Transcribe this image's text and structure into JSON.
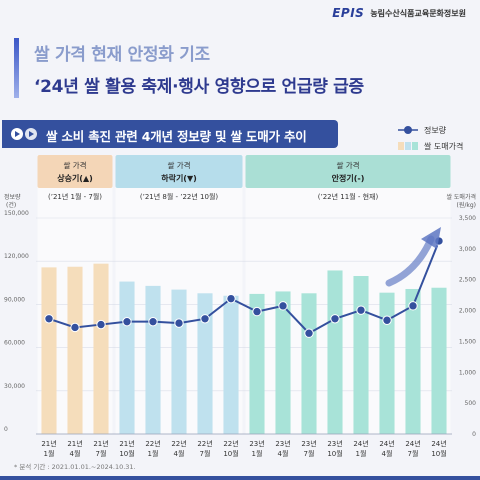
{
  "header": {
    "brand_logo": "EPIS",
    "brand_name": "농림수산식품교육문화정보원",
    "title_line1": "쌀 가격 현재 안정화 기조",
    "title_line2": "‘24년 쌀 활용 축제·행사 영향으로 언급량 급증"
  },
  "subheader": {
    "title": "쌀 소비 촉진 관련 4개년 정보량 및 쌀 도매가 추이"
  },
  "footnote": "* 분석 기간 : 2021.01.01.~2024.10.31.",
  "colors": {
    "rising": "#f5ddbb",
    "falling": "#bfe1ee",
    "stable": "#a8e3d8",
    "line": "#34509e",
    "accent": "#2e3a8f"
  },
  "chart_data": {
    "type": "bar",
    "categories": [
      "21년 1월",
      "21년 4월",
      "21년 7월",
      "21년 10월",
      "22년 1월",
      "22년 4월",
      "22년 7월",
      "22년 10월",
      "23년 1월",
      "23년 4월",
      "23년 7월",
      "23년 10월",
      "24년 1월",
      "24년 4월",
      "24년 7월",
      "24년 10월"
    ],
    "category_labels": [
      [
        "21년",
        "1월"
      ],
      [
        "21년",
        "4월"
      ],
      [
        "21년",
        "7월"
      ],
      [
        "21년",
        "10월"
      ],
      [
        "22년",
        "1월"
      ],
      [
        "22년",
        "4월"
      ],
      [
        "22년",
        "7월"
      ],
      [
        "22년",
        "10월"
      ],
      [
        "23년",
        "1월"
      ],
      [
        "23년",
        "4월"
      ],
      [
        "23년",
        "7월"
      ],
      [
        "23년",
        "10월"
      ],
      [
        "24년",
        "1월"
      ],
      [
        "24년",
        "4월"
      ],
      [
        "24년",
        "7월"
      ],
      [
        "24년",
        "10월"
      ]
    ],
    "series": [
      {
        "name": "쌀 도매가격",
        "type": "bar",
        "axis": "right",
        "values": [
          2700,
          2710,
          2760,
          2470,
          2400,
          2340,
          2280,
          2240,
          2270,
          2310,
          2280,
          2650,
          2560,
          2290,
          2350,
          2370
        ]
      },
      {
        "name": "정보량",
        "type": "line",
        "axis": "left",
        "values": [
          80000,
          74000,
          76000,
          78000,
          78000,
          77000,
          80000,
          94000,
          85000,
          89000,
          70000,
          80000,
          86000,
          79000,
          89000,
          134000
        ]
      }
    ],
    "y_left": {
      "label": "정보량",
      "unit": "(건)",
      "ylim": [
        0,
        150000
      ],
      "ticks": [
        0,
        30000,
        60000,
        90000,
        120000,
        150000
      ],
      "tick_labels": [
        "0",
        "30,000",
        "60,000",
        "90,000",
        "120,000",
        "150,000"
      ]
    },
    "y_right": {
      "label": "쌀 도매가격",
      "unit": "(원/kg)",
      "ylim": [
        0,
        3500
      ],
      "ticks": [
        0,
        500,
        1000,
        1500,
        2000,
        2500,
        3000,
        3500
      ],
      "tick_labels": [
        "0",
        "500",
        "1,000",
        "1,500",
        "2,000",
        "2,500",
        "3,000",
        "3,500"
      ]
    },
    "periods": [
      {
        "title": "쌀 가격",
        "subtitle": "상승기(▲)",
        "range": "(’21년 1월 - 7월)",
        "start_index": 0,
        "end_index": 2,
        "phase": "rising"
      },
      {
        "title": "쌀 가격",
        "subtitle": "하락기(▼)",
        "range": "(’21년 8월 - ’22년 10월)",
        "start_index": 3,
        "end_index": 7,
        "phase": "falling"
      },
      {
        "title": "쌀 가격",
        "subtitle": "안정기(-)",
        "range": "(’22년 11월 - 현재)",
        "start_index": 8,
        "end_index": 15,
        "phase": "stable"
      }
    ],
    "legend": {
      "position": "top-right",
      "line_label": "정보량",
      "bar_label": "쌀 도매가격"
    },
    "grid": true
  }
}
